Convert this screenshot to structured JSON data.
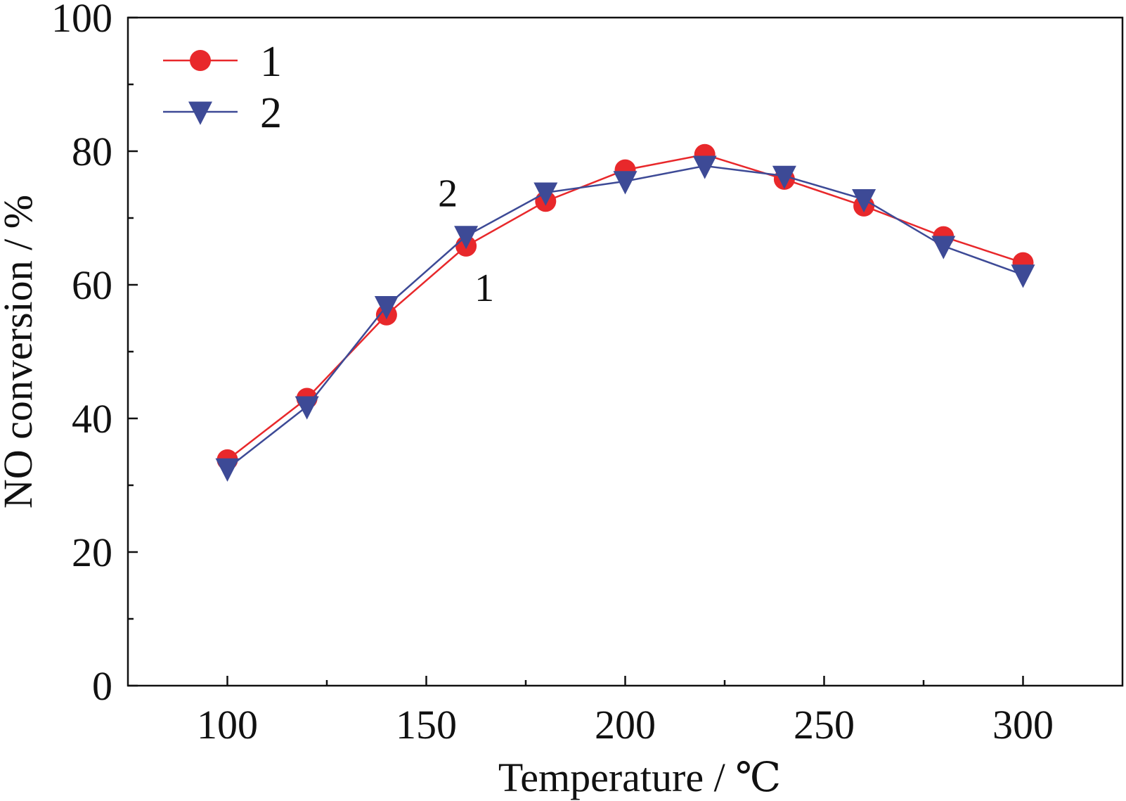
{
  "chart_data": {
    "type": "line",
    "title": "",
    "xlabel": "Temperature / ℃",
    "ylabel": "NO conversion / %",
    "x": [
      100,
      120,
      140,
      160,
      180,
      200,
      220,
      240,
      260,
      280,
      300
    ],
    "xlim": [
      75,
      325
    ],
    "ylim": [
      0,
      100
    ],
    "xticks": [
      100,
      150,
      200,
      250,
      300
    ],
    "xticks_minor": [
      125,
      175,
      225,
      275
    ],
    "yticks": [
      0,
      20,
      40,
      60,
      80,
      100
    ],
    "yticks_minor": [
      10,
      30,
      50,
      70,
      90
    ],
    "grid": false,
    "legend_position": "top-left",
    "series": [
      {
        "name": "1",
        "color": "#e8282b",
        "marker": "circle",
        "values": [
          33.8,
          43.0,
          55.5,
          65.8,
          72.5,
          77.2,
          79.5,
          75.8,
          71.8,
          67.2,
          63.3
        ]
      },
      {
        "name": "2",
        "color": "#3d4a96",
        "marker": "triangle-down",
        "values": [
          32.5,
          41.8,
          56.8,
          67.3,
          73.8,
          75.5,
          77.8,
          76.3,
          72.8,
          65.8,
          61.5
        ]
      }
    ],
    "annotations": [
      {
        "text": "2",
        "series": "2",
        "x": 160
      },
      {
        "text": "1",
        "series": "1",
        "x": 160
      }
    ]
  }
}
